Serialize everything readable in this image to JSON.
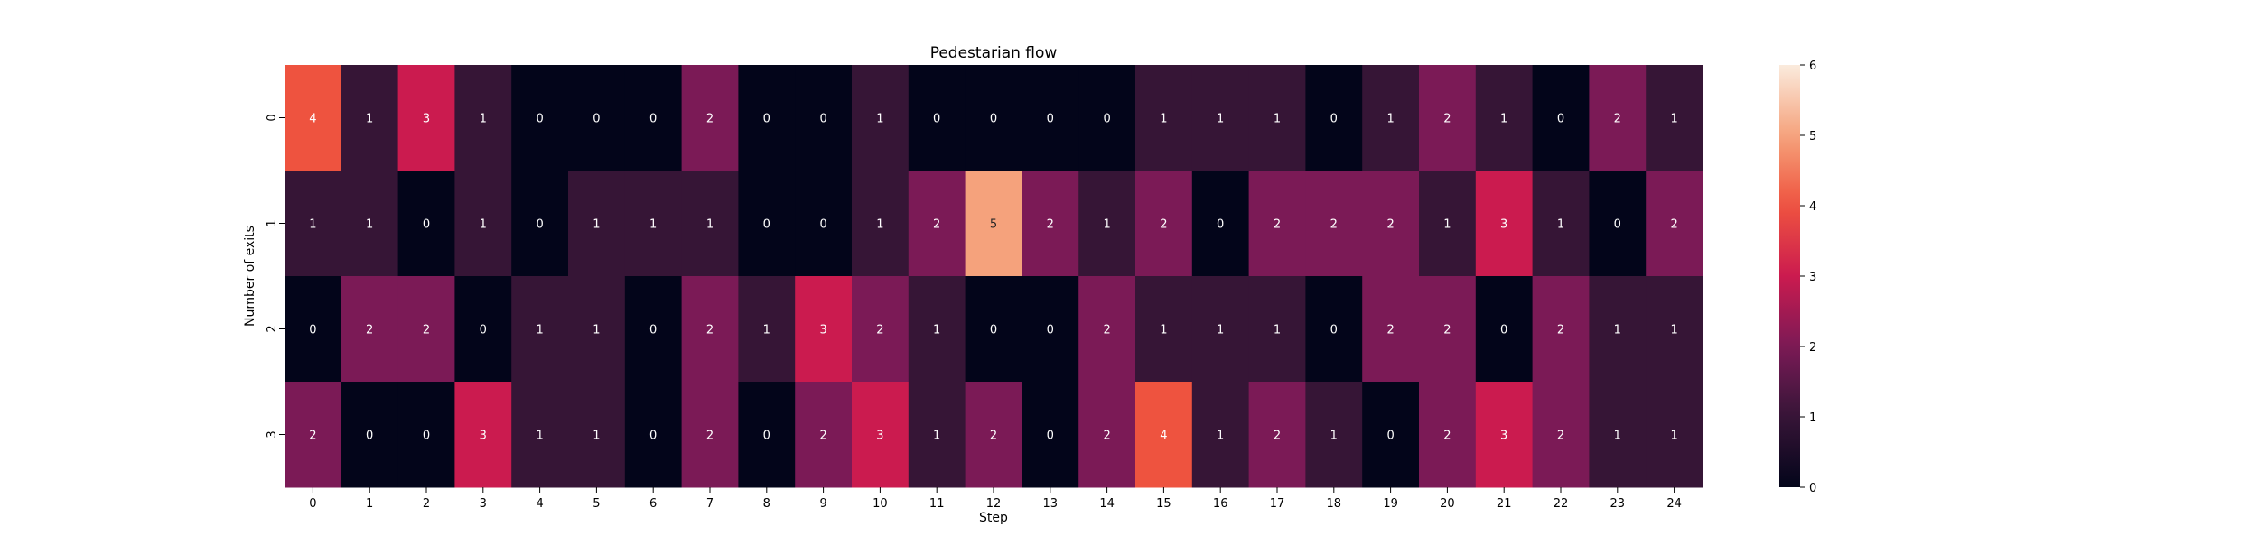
{
  "chart_data": {
    "type": "heatmap",
    "title": "Pedestarian flow",
    "xlabel": "Step",
    "ylabel": "Number of exits",
    "x_categories": [
      "0",
      "1",
      "2",
      "3",
      "4",
      "5",
      "6",
      "7",
      "8",
      "9",
      "10",
      "11",
      "12",
      "13",
      "14",
      "15",
      "16",
      "17",
      "18",
      "19",
      "20",
      "21",
      "22",
      "23",
      "24"
    ],
    "y_categories": [
      "0",
      "1",
      "2",
      "3"
    ],
    "values": [
      [
        4,
        1,
        3,
        1,
        0,
        0,
        0,
        2,
        0,
        0,
        1,
        0,
        0,
        0,
        0,
        1,
        1,
        1,
        0,
        1,
        2,
        1,
        0,
        2,
        1
      ],
      [
        1,
        1,
        0,
        1,
        0,
        1,
        1,
        1,
        0,
        0,
        1,
        2,
        5,
        2,
        1,
        2,
        0,
        2,
        2,
        2,
        1,
        3,
        1,
        0,
        2
      ],
      [
        0,
        2,
        2,
        0,
        1,
        1,
        0,
        2,
        1,
        3,
        2,
        1,
        0,
        0,
        2,
        1,
        1,
        1,
        0,
        2,
        2,
        0,
        2,
        1,
        1
      ],
      [
        2,
        0,
        0,
        3,
        1,
        1,
        0,
        2,
        0,
        2,
        3,
        1,
        2,
        0,
        2,
        4,
        1,
        2,
        1,
        0,
        2,
        3,
        2,
        1,
        1
      ]
    ],
    "colorbar": {
      "min": 0,
      "max": 6,
      "ticks": [
        "0",
        "1",
        "2",
        "3",
        "4",
        "5",
        "6"
      ]
    },
    "colormap": "rocket",
    "annotations": true,
    "grid": false
  }
}
